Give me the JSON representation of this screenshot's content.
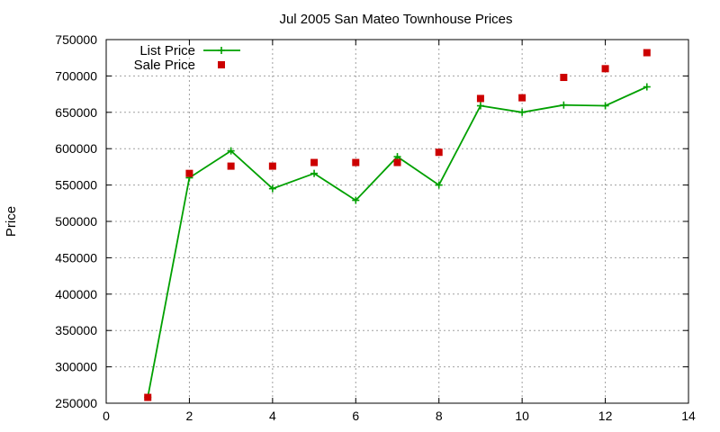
{
  "chart_data": {
    "type": "line",
    "title": "Jul 2005 San Mateo Townhouse Prices",
    "xlabel": "",
    "ylabel": "Price",
    "xlim": [
      0,
      14
    ],
    "ylim": [
      250000,
      750000
    ],
    "xticks": [
      0,
      2,
      4,
      6,
      8,
      10,
      12,
      14
    ],
    "yticks": [
      250000,
      300000,
      350000,
      400000,
      450000,
      500000,
      550000,
      600000,
      650000,
      700000,
      750000
    ],
    "grid": true,
    "legend_position": "top-left",
    "series": [
      {
        "name": "List Price",
        "style": "line-plus",
        "color": "#00a000",
        "x": [
          1,
          2,
          3,
          4,
          5,
          6,
          7,
          8,
          9,
          10,
          11,
          12,
          13
        ],
        "y": [
          258000,
          560000,
          597000,
          545000,
          566000,
          529000,
          589000,
          550000,
          659000,
          650000,
          660000,
          659000,
          685000
        ]
      },
      {
        "name": "Sale Price",
        "style": "square-points",
        "color": "#cc0000",
        "x": [
          1,
          2,
          3,
          4,
          5,
          6,
          7,
          8,
          9,
          10,
          11,
          12,
          13
        ],
        "y": [
          258000,
          566000,
          576000,
          576000,
          581000,
          581000,
          581000,
          595000,
          669000,
          670000,
          698000,
          710000,
          732000
        ]
      }
    ]
  }
}
